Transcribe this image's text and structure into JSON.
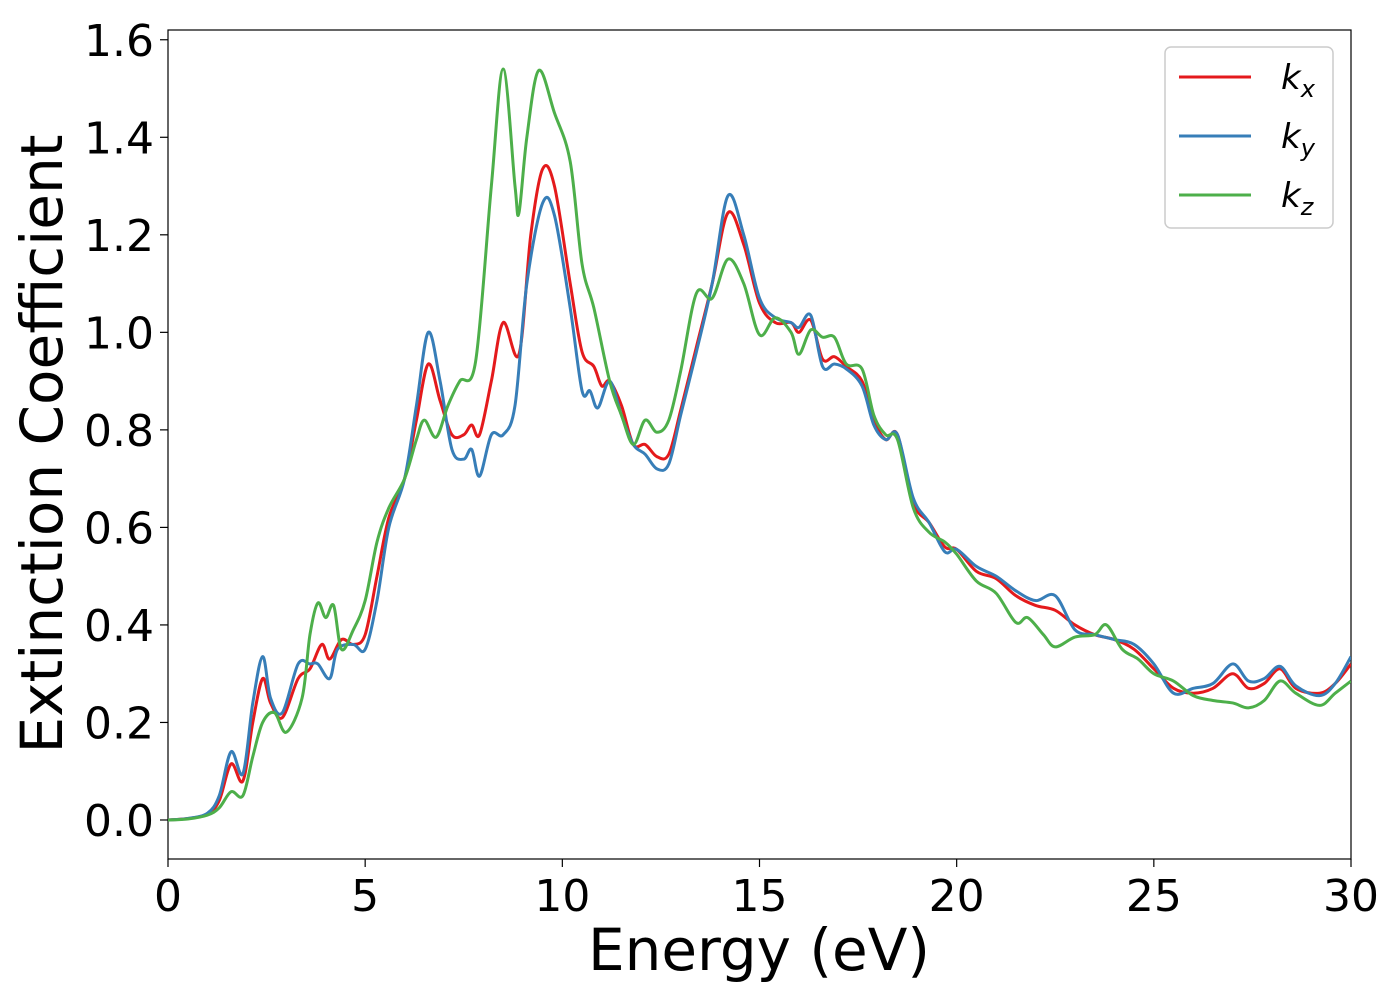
{
  "chart_data": {
    "type": "line",
    "title": "",
    "xlabel": "Energy (eV)",
    "ylabel": "Extinction Coefficient",
    "xlim": [
      0,
      30
    ],
    "ylim": [
      -0.08,
      1.62
    ],
    "xticks": [
      0,
      5,
      10,
      15,
      20,
      25,
      30
    ],
    "xtick_labels": [
      "0",
      "5",
      "10",
      "15",
      "20",
      "25",
      "30"
    ],
    "yticks": [
      0.0,
      0.2,
      0.4,
      0.6,
      0.8,
      1.0,
      1.2,
      1.4,
      1.6
    ],
    "ytick_labels": [
      "0.0",
      "0.2",
      "0.4",
      "0.6",
      "0.8",
      "1.0",
      "1.2",
      "1.4",
      "1.6"
    ],
    "grid": false,
    "legend_position": "top-right",
    "series": [
      {
        "name": "k",
        "subscript": "x",
        "color": "#e41a1c",
        "points": [
          [
            0,
            0
          ],
          [
            0.5,
            0.003
          ],
          [
            1.0,
            0.012
          ],
          [
            1.3,
            0.04
          ],
          [
            1.6,
            0.115
          ],
          [
            1.9,
            0.08
          ],
          [
            2.15,
            0.2
          ],
          [
            2.4,
            0.29
          ],
          [
            2.6,
            0.24
          ],
          [
            2.9,
            0.21
          ],
          [
            3.3,
            0.29
          ],
          [
            3.6,
            0.31
          ],
          [
            3.9,
            0.36
          ],
          [
            4.1,
            0.33
          ],
          [
            4.4,
            0.37
          ],
          [
            4.7,
            0.36
          ],
          [
            5.0,
            0.38
          ],
          [
            5.3,
            0.5
          ],
          [
            5.6,
            0.62
          ],
          [
            6.0,
            0.7
          ],
          [
            6.3,
            0.82
          ],
          [
            6.6,
            0.935
          ],
          [
            6.9,
            0.86
          ],
          [
            7.2,
            0.79
          ],
          [
            7.5,
            0.79
          ],
          [
            7.7,
            0.81
          ],
          [
            7.9,
            0.79
          ],
          [
            8.2,
            0.9
          ],
          [
            8.5,
            1.02
          ],
          [
            8.9,
            0.955
          ],
          [
            9.2,
            1.2
          ],
          [
            9.5,
            1.335
          ],
          [
            9.8,
            1.3
          ],
          [
            10.2,
            1.1
          ],
          [
            10.5,
            0.96
          ],
          [
            10.8,
            0.93
          ],
          [
            11.0,
            0.89
          ],
          [
            11.2,
            0.9
          ],
          [
            11.5,
            0.85
          ],
          [
            11.8,
            0.77
          ],
          [
            12.1,
            0.77
          ],
          [
            12.4,
            0.745
          ],
          [
            12.7,
            0.75
          ],
          [
            13.0,
            0.84
          ],
          [
            13.4,
            0.97
          ],
          [
            13.8,
            1.1
          ],
          [
            14.2,
            1.245
          ],
          [
            14.6,
            1.18
          ],
          [
            15.0,
            1.06
          ],
          [
            15.4,
            1.02
          ],
          [
            15.8,
            1.02
          ],
          [
            16.0,
            1.0
          ],
          [
            16.3,
            1.025
          ],
          [
            16.6,
            0.945
          ],
          [
            16.9,
            0.95
          ],
          [
            17.2,
            0.93
          ],
          [
            17.6,
            0.9
          ],
          [
            17.9,
            0.82
          ],
          [
            18.2,
            0.78
          ],
          [
            18.5,
            0.79
          ],
          [
            18.9,
            0.65
          ],
          [
            19.3,
            0.61
          ],
          [
            19.7,
            0.56
          ],
          [
            20.0,
            0.555
          ],
          [
            20.5,
            0.51
          ],
          [
            21.0,
            0.495
          ],
          [
            21.5,
            0.46
          ],
          [
            22.0,
            0.44
          ],
          [
            22.5,
            0.43
          ],
          [
            23.0,
            0.4
          ],
          [
            23.5,
            0.38
          ],
          [
            24.0,
            0.37
          ],
          [
            24.5,
            0.35
          ],
          [
            25.0,
            0.31
          ],
          [
            25.5,
            0.27
          ],
          [
            26.0,
            0.26
          ],
          [
            26.5,
            0.27
          ],
          [
            27.0,
            0.3
          ],
          [
            27.4,
            0.27
          ],
          [
            27.8,
            0.28
          ],
          [
            28.2,
            0.31
          ],
          [
            28.6,
            0.27
          ],
          [
            29.2,
            0.26
          ],
          [
            29.6,
            0.28
          ],
          [
            30.0,
            0.32
          ]
        ]
      },
      {
        "name": "k",
        "subscript": "y",
        "color": "#377eb8",
        "points": [
          [
            0,
            0
          ],
          [
            0.5,
            0.003
          ],
          [
            1.0,
            0.014
          ],
          [
            1.3,
            0.05
          ],
          [
            1.6,
            0.14
          ],
          [
            1.9,
            0.095
          ],
          [
            2.15,
            0.24
          ],
          [
            2.4,
            0.335
          ],
          [
            2.6,
            0.25
          ],
          [
            2.9,
            0.22
          ],
          [
            3.3,
            0.32
          ],
          [
            3.6,
            0.32
          ],
          [
            3.8,
            0.32
          ],
          [
            4.1,
            0.29
          ],
          [
            4.3,
            0.35
          ],
          [
            4.7,
            0.36
          ],
          [
            5.0,
            0.35
          ],
          [
            5.3,
            0.45
          ],
          [
            5.6,
            0.6
          ],
          [
            6.0,
            0.7
          ],
          [
            6.3,
            0.85
          ],
          [
            6.6,
            1.0
          ],
          [
            6.9,
            0.9
          ],
          [
            7.2,
            0.76
          ],
          [
            7.5,
            0.74
          ],
          [
            7.7,
            0.76
          ],
          [
            7.9,
            0.705
          ],
          [
            8.2,
            0.79
          ],
          [
            8.5,
            0.79
          ],
          [
            8.8,
            0.85
          ],
          [
            9.1,
            1.1
          ],
          [
            9.5,
            1.265
          ],
          [
            9.8,
            1.24
          ],
          [
            10.2,
            1.05
          ],
          [
            10.5,
            0.88
          ],
          [
            10.7,
            0.88
          ],
          [
            10.9,
            0.845
          ],
          [
            11.2,
            0.9
          ],
          [
            11.5,
            0.83
          ],
          [
            11.8,
            0.77
          ],
          [
            12.1,
            0.75
          ],
          [
            12.4,
            0.72
          ],
          [
            12.7,
            0.73
          ],
          [
            13.0,
            0.83
          ],
          [
            13.4,
            0.96
          ],
          [
            13.8,
            1.1
          ],
          [
            14.2,
            1.28
          ],
          [
            14.6,
            1.2
          ],
          [
            15.0,
            1.07
          ],
          [
            15.4,
            1.03
          ],
          [
            15.8,
            1.02
          ],
          [
            16.0,
            1.01
          ],
          [
            16.3,
            1.035
          ],
          [
            16.6,
            0.93
          ],
          [
            16.9,
            0.935
          ],
          [
            17.2,
            0.925
          ],
          [
            17.6,
            0.89
          ],
          [
            17.9,
            0.81
          ],
          [
            18.2,
            0.78
          ],
          [
            18.5,
            0.79
          ],
          [
            18.9,
            0.66
          ],
          [
            19.3,
            0.61
          ],
          [
            19.7,
            0.55
          ],
          [
            20.0,
            0.555
          ],
          [
            20.5,
            0.52
          ],
          [
            21.0,
            0.5
          ],
          [
            21.5,
            0.47
          ],
          [
            22.0,
            0.45
          ],
          [
            22.5,
            0.46
          ],
          [
            23.0,
            0.39
          ],
          [
            23.5,
            0.38
          ],
          [
            24.0,
            0.37
          ],
          [
            24.5,
            0.36
          ],
          [
            25.0,
            0.32
          ],
          [
            25.5,
            0.26
          ],
          [
            26.0,
            0.27
          ],
          [
            26.5,
            0.28
          ],
          [
            27.0,
            0.32
          ],
          [
            27.4,
            0.285
          ],
          [
            27.8,
            0.29
          ],
          [
            28.2,
            0.315
          ],
          [
            28.6,
            0.275
          ],
          [
            29.2,
            0.255
          ],
          [
            29.6,
            0.28
          ],
          [
            30.0,
            0.335
          ]
        ]
      },
      {
        "name": "k",
        "subscript": "z",
        "color": "#4daf4a",
        "points": [
          [
            0,
            0
          ],
          [
            0.5,
            0.002
          ],
          [
            1.0,
            0.01
          ],
          [
            1.3,
            0.025
          ],
          [
            1.6,
            0.058
          ],
          [
            1.9,
            0.05
          ],
          [
            2.15,
            0.13
          ],
          [
            2.4,
            0.2
          ],
          [
            2.7,
            0.22
          ],
          [
            3.0,
            0.18
          ],
          [
            3.4,
            0.25
          ],
          [
            3.6,
            0.38
          ],
          [
            3.8,
            0.445
          ],
          [
            4.0,
            0.415
          ],
          [
            4.2,
            0.44
          ],
          [
            4.4,
            0.35
          ],
          [
            4.7,
            0.39
          ],
          [
            5.0,
            0.45
          ],
          [
            5.3,
            0.57
          ],
          [
            5.6,
            0.64
          ],
          [
            6.0,
            0.7
          ],
          [
            6.3,
            0.78
          ],
          [
            6.5,
            0.82
          ],
          [
            6.8,
            0.785
          ],
          [
            7.1,
            0.85
          ],
          [
            7.4,
            0.9
          ],
          [
            7.8,
            0.94
          ],
          [
            8.2,
            1.3
          ],
          [
            8.5,
            1.54
          ],
          [
            8.8,
            1.3
          ],
          [
            8.9,
            1.245
          ],
          [
            9.1,
            1.4
          ],
          [
            9.4,
            1.537
          ],
          [
            9.8,
            1.45
          ],
          [
            10.2,
            1.35
          ],
          [
            10.5,
            1.14
          ],
          [
            10.8,
            1.05
          ],
          [
            11.2,
            0.9
          ],
          [
            11.5,
            0.83
          ],
          [
            11.8,
            0.77
          ],
          [
            12.1,
            0.82
          ],
          [
            12.4,
            0.795
          ],
          [
            12.7,
            0.82
          ],
          [
            13.0,
            0.92
          ],
          [
            13.4,
            1.08
          ],
          [
            13.8,
            1.07
          ],
          [
            14.2,
            1.15
          ],
          [
            14.6,
            1.1
          ],
          [
            15.0,
            0.995
          ],
          [
            15.4,
            1.03
          ],
          [
            15.8,
            1.0
          ],
          [
            16.0,
            0.955
          ],
          [
            16.3,
            1.005
          ],
          [
            16.6,
            0.99
          ],
          [
            16.9,
            0.99
          ],
          [
            17.2,
            0.935
          ],
          [
            17.6,
            0.925
          ],
          [
            17.9,
            0.83
          ],
          [
            18.2,
            0.79
          ],
          [
            18.5,
            0.78
          ],
          [
            18.9,
            0.64
          ],
          [
            19.3,
            0.59
          ],
          [
            19.7,
            0.57
          ],
          [
            20.0,
            0.545
          ],
          [
            20.5,
            0.49
          ],
          [
            21.0,
            0.465
          ],
          [
            21.5,
            0.405
          ],
          [
            21.8,
            0.415
          ],
          [
            22.2,
            0.38
          ],
          [
            22.5,
            0.355
          ],
          [
            23.0,
            0.375
          ],
          [
            23.5,
            0.38
          ],
          [
            23.8,
            0.4
          ],
          [
            24.2,
            0.35
          ],
          [
            24.6,
            0.33
          ],
          [
            25.0,
            0.3
          ],
          [
            25.5,
            0.285
          ],
          [
            26.0,
            0.255
          ],
          [
            26.5,
            0.245
          ],
          [
            27.0,
            0.24
          ],
          [
            27.4,
            0.23
          ],
          [
            27.8,
            0.245
          ],
          [
            28.2,
            0.285
          ],
          [
            28.6,
            0.26
          ],
          [
            29.2,
            0.235
          ],
          [
            29.6,
            0.26
          ],
          [
            30.0,
            0.285
          ]
        ]
      }
    ]
  }
}
